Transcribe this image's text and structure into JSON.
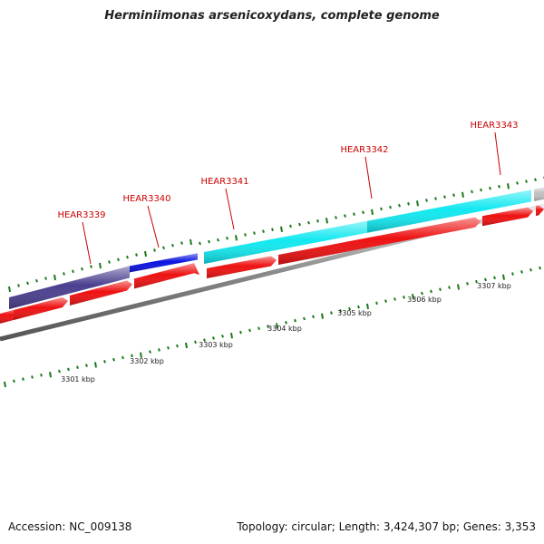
{
  "title": "Herminiimonas arsenicoxydans, complete genome",
  "genes": [
    {
      "label": "HEAR3339",
      "color": "#4a3f8f",
      "strand": "+"
    },
    {
      "label": "HEAR3340",
      "color": "#0a14e0",
      "strand": "+"
    },
    {
      "label": "HEAR3341",
      "color": "#12e8f0",
      "strand": "+"
    },
    {
      "label": "HEAR3342",
      "color": "#12e8f0",
      "strand": "+"
    },
    {
      "label": "HEAR3343",
      "color": "#bfbfbf",
      "strand": "+"
    }
  ],
  "scale_labels": [
    "3301 kbp",
    "3302 kbp",
    "3303 kbp",
    "3304 kbp",
    "3305 kbp",
    "3306 kbp",
    "3307 kbp"
  ],
  "colors": {
    "cds": "#ee1111",
    "backbone": "#8a8a8a",
    "tick": "#1a7a1a",
    "label": "#cc0000"
  },
  "footer": {
    "accession": "Accession: NC_009138",
    "stats": "Topology: circular; Length: 3,424,307 bp; Genes: 3,353"
  }
}
